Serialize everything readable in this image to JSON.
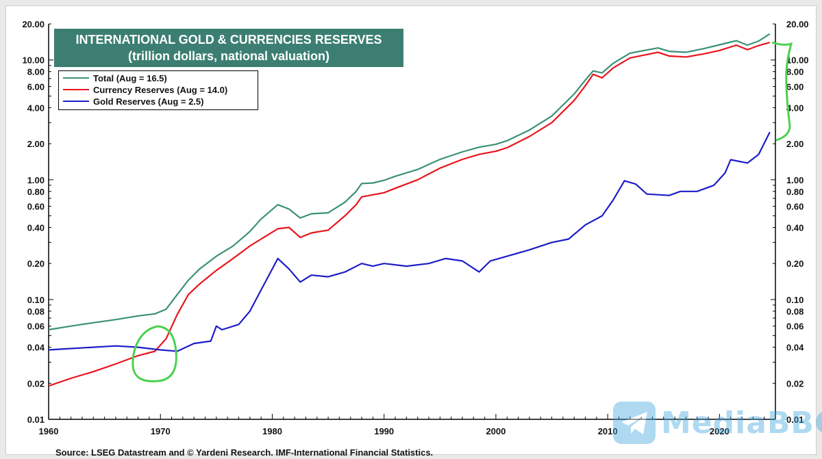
{
  "colors": {
    "total": "#3a9077",
    "currency": "#e8141b",
    "gold": "#1d1cc8",
    "annotation": "#4ad04f",
    "title_bg": "#3c7f72",
    "watermark": "#3fa7e0"
  },
  "title": {
    "line1": "INTERNATIONAL GOLD & CURRENCIES RESERVES",
    "line2": "(trillion dollars, national valuation)"
  },
  "legend": [
    {
      "label": "Total (Aug = 16.5)",
      "color": "#3a9077"
    },
    {
      "label": "Currency Reserves (Aug = 14.0)",
      "color": "#e8141b"
    },
    {
      "label": "Gold Reserves (Aug = 2.5)",
      "color": "#1d1cc8"
    }
  ],
  "source": "Source: LSEG Datastream and © Yardeni Research. IMF-International Financial Statistics.",
  "watermark": {
    "text": "MediaBBG",
    "icon": "telegram-plane-icon"
  },
  "chart_data": {
    "type": "line",
    "title": "INTERNATIONAL GOLD & CURRENCIES RESERVES",
    "subtitle": "(trillion dollars, national valuation)",
    "xlabel": "",
    "ylabel": "",
    "y_scale": "log",
    "xlim": [
      1960,
      2025
    ],
    "ylim": [
      0.01,
      20
    ],
    "x_ticks": [
      "1960",
      "1970",
      "1980",
      "1990",
      "2000",
      "2010",
      "2020"
    ],
    "x_tick_values": [
      1960,
      1970,
      1980,
      1990,
      2000,
      2010,
      2020
    ],
    "y_ticks": [
      "20.00",
      "10.00",
      "8.00",
      "6.00",
      "4.00",
      "2.00",
      "1.00",
      "0.80",
      "0.60",
      "0.40",
      "0.20",
      "0.10",
      "0.08",
      "0.06",
      "0.04",
      "0.02",
      "0.01"
    ],
    "y_tick_values": [
      20,
      10,
      8,
      6,
      4,
      2,
      1,
      0.8,
      0.6,
      0.4,
      0.2,
      0.1,
      0.08,
      0.06,
      0.04,
      0.02,
      0.01
    ],
    "legend_position": "top-left",
    "series": [
      {
        "name": "Total (Aug = 16.5)",
        "color": "#3a9077",
        "points": [
          [
            1960,
            0.056
          ],
          [
            1962,
            0.06
          ],
          [
            1964,
            0.064
          ],
          [
            1966,
            0.068
          ],
          [
            1968,
            0.073
          ],
          [
            1969.5,
            0.076
          ],
          [
            1970.5,
            0.083
          ],
          [
            1971.5,
            0.11
          ],
          [
            1972.5,
            0.145
          ],
          [
            1973.5,
            0.18
          ],
          [
            1975,
            0.23
          ],
          [
            1976.5,
            0.28
          ],
          [
            1978,
            0.37
          ],
          [
            1979,
            0.47
          ],
          [
            1980.5,
            0.62
          ],
          [
            1981.5,
            0.57
          ],
          [
            1982.5,
            0.48
          ],
          [
            1983.5,
            0.52
          ],
          [
            1985,
            0.53
          ],
          [
            1986.5,
            0.65
          ],
          [
            1987.5,
            0.8
          ],
          [
            1988,
            0.93
          ],
          [
            1989,
            0.94
          ],
          [
            1990,
            0.99
          ],
          [
            1991,
            1.07
          ],
          [
            1993,
            1.22
          ],
          [
            1995,
            1.48
          ],
          [
            1997,
            1.71
          ],
          [
            1998.5,
            1.87
          ],
          [
            2000,
            1.98
          ],
          [
            2001,
            2.12
          ],
          [
            2003,
            2.6
          ],
          [
            2005,
            3.4
          ],
          [
            2007,
            5.2
          ],
          [
            2008,
            6.8
          ],
          [
            2008.7,
            8.1
          ],
          [
            2009.5,
            7.8
          ],
          [
            2010.5,
            9.4
          ],
          [
            2012,
            11.4
          ],
          [
            2014.5,
            12.6
          ],
          [
            2015.5,
            11.8
          ],
          [
            2017,
            11.6
          ],
          [
            2018.5,
            12.4
          ],
          [
            2020,
            13.4
          ],
          [
            2021.5,
            14.5
          ],
          [
            2022.5,
            13.3
          ],
          [
            2023.5,
            14.4
          ],
          [
            2024.5,
            16.5
          ]
        ]
      },
      {
        "name": "Currency Reserves (Aug = 14.0)",
        "color": "#e8141b",
        "points": [
          [
            1960,
            0.019
          ],
          [
            1962,
            0.022
          ],
          [
            1964,
            0.025
          ],
          [
            1966,
            0.029
          ],
          [
            1968,
            0.034
          ],
          [
            1969.5,
            0.037
          ],
          [
            1970.5,
            0.047
          ],
          [
            1971.5,
            0.075
          ],
          [
            1972.5,
            0.11
          ],
          [
            1973.5,
            0.135
          ],
          [
            1975,
            0.175
          ],
          [
            1976.5,
            0.22
          ],
          [
            1978,
            0.28
          ],
          [
            1979,
            0.32
          ],
          [
            1980.5,
            0.39
          ],
          [
            1981.5,
            0.4
          ],
          [
            1982.5,
            0.33
          ],
          [
            1983.5,
            0.36
          ],
          [
            1985,
            0.38
          ],
          [
            1986.5,
            0.5
          ],
          [
            1987.5,
            0.62
          ],
          [
            1988,
            0.72
          ],
          [
            1990,
            0.78
          ],
          [
            1991,
            0.85
          ],
          [
            1993,
            1.0
          ],
          [
            1995,
            1.25
          ],
          [
            1997,
            1.48
          ],
          [
            1998.5,
            1.63
          ],
          [
            2000,
            1.73
          ],
          [
            2001,
            1.85
          ],
          [
            2003,
            2.3
          ],
          [
            2005,
            3.0
          ],
          [
            2007,
            4.6
          ],
          [
            2008,
            6.1
          ],
          [
            2008.7,
            7.6
          ],
          [
            2009.5,
            7.1
          ],
          [
            2010.5,
            8.6
          ],
          [
            2012,
            10.4
          ],
          [
            2014.5,
            11.6
          ],
          [
            2015.5,
            10.8
          ],
          [
            2017,
            10.6
          ],
          [
            2018.5,
            11.2
          ],
          [
            2020,
            12.0
          ],
          [
            2021.5,
            13.3
          ],
          [
            2022.5,
            12.2
          ],
          [
            2023.5,
            13.2
          ],
          [
            2024.5,
            14.0
          ]
        ]
      },
      {
        "name": "Gold Reserves (Aug = 2.5)",
        "color": "#1d1cc8",
        "points": [
          [
            1960,
            0.038
          ],
          [
            1962,
            0.039
          ],
          [
            1964,
            0.04
          ],
          [
            1966,
            0.041
          ],
          [
            1968,
            0.04
          ],
          [
            1970,
            0.038
          ],
          [
            1971.5,
            0.037
          ],
          [
            1973,
            0.043
          ],
          [
            1974.5,
            0.045
          ],
          [
            1975,
            0.06
          ],
          [
            1975.5,
            0.056
          ],
          [
            1977,
            0.062
          ],
          [
            1978,
            0.08
          ],
          [
            1979,
            0.12
          ],
          [
            1980.5,
            0.22
          ],
          [
            1981.5,
            0.18
          ],
          [
            1982.5,
            0.14
          ],
          [
            1983.5,
            0.16
          ],
          [
            1985,
            0.155
          ],
          [
            1986.5,
            0.17
          ],
          [
            1988,
            0.2
          ],
          [
            1989,
            0.19
          ],
          [
            1990,
            0.2
          ],
          [
            1992,
            0.19
          ],
          [
            1994,
            0.2
          ],
          [
            1995.5,
            0.22
          ],
          [
            1997,
            0.21
          ],
          [
            1998.5,
            0.17
          ],
          [
            1999.5,
            0.21
          ],
          [
            2001,
            0.23
          ],
          [
            2003,
            0.26
          ],
          [
            2005,
            0.3
          ],
          [
            2006.5,
            0.32
          ],
          [
            2008,
            0.42
          ],
          [
            2009.5,
            0.5
          ],
          [
            2010.5,
            0.68
          ],
          [
            2011.5,
            0.98
          ],
          [
            2012.5,
            0.92
          ],
          [
            2013.5,
            0.76
          ],
          [
            2015.5,
            0.74
          ],
          [
            2016.5,
            0.8
          ],
          [
            2018,
            0.8
          ],
          [
            2019.5,
            0.9
          ],
          [
            2020.5,
            1.14
          ],
          [
            2021,
            1.47
          ],
          [
            2022.5,
            1.38
          ],
          [
            2023.5,
            1.63
          ],
          [
            2024.5,
            2.5
          ]
        ]
      }
    ]
  }
}
